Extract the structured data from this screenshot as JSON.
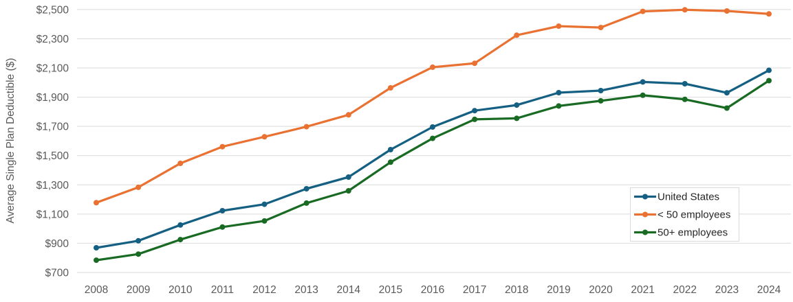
{
  "chart_data": {
    "type": "line",
    "title": "",
    "xlabel": "",
    "ylabel": "Average Single Plan Deductible ($)",
    "ylim": [
      700,
      2500
    ],
    "ytick_step": 200,
    "ytick_labels": [
      "$700",
      "$900",
      "$1,100",
      "$1,300",
      "$1,500",
      "$1,700",
      "$1,900",
      "$2,100",
      "$2,300",
      "$2,500"
    ],
    "grid": true,
    "legend_position": "inside-bottom-right",
    "x": [
      "2008",
      "2009",
      "2010",
      "2011",
      "2012",
      "2013",
      "2014",
      "2015",
      "2016",
      "2017",
      "2018",
      "2019",
      "2020",
      "2021",
      "2022",
      "2023",
      "2024"
    ],
    "series": [
      {
        "name": "United States",
        "color": "#156082",
        "values": [
          869,
          917,
          1025,
          1123,
          1167,
          1273,
          1353,
          1541,
          1696,
          1808,
          1846,
          1931,
          1945,
          2004,
          1992,
          1930,
          2084
        ]
      },
      {
        "name": "< 50 employees",
        "color": "#E97132",
        "values": [
          1178,
          1283,
          1447,
          1561,
          1629,
          1698,
          1779,
          1964,
          2105,
          2132,
          2324,
          2386,
          2377,
          2487,
          2498,
          2490,
          2470
        ]
      },
      {
        "name": "50+ employees",
        "color": "#196B24",
        "values": [
          784,
          826,
          925,
          1011,
          1053,
          1175,
          1259,
          1455,
          1618,
          1748,
          1755,
          1840,
          1875,
          1913,
          1885,
          1825,
          2013
        ]
      }
    ]
  },
  "style": {
    "axis_text_color": "#595959",
    "gridline_color": "#D9D9D9",
    "legend_text_color": "#262626",
    "legend_border_color": "#D9D9D9",
    "background_color": "#FFFFFF"
  }
}
